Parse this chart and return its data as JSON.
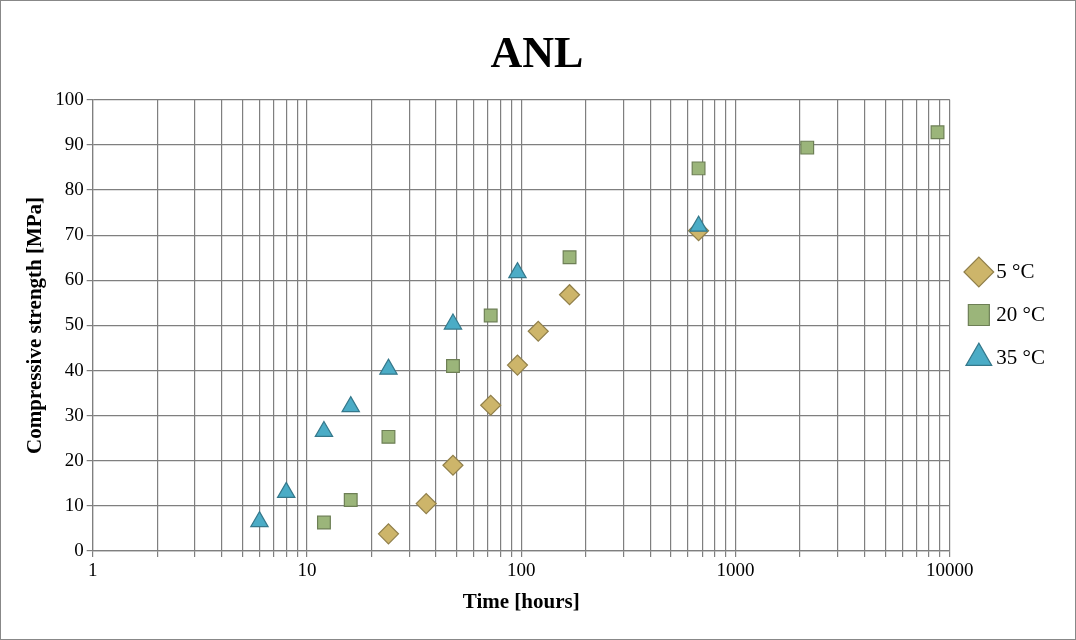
{
  "chart_data": {
    "type": "scatter",
    "title": "ANL",
    "xlabel": "Time [hours]",
    "ylabel": "Compressive strength [MPa]",
    "log": "x",
    "grid": true,
    "legend": "right",
    "xlim": [
      1,
      10000
    ],
    "xticks": [
      1,
      {
        "value": 2,
        "label": null
      },
      {
        "value": 3,
        "label": null
      },
      {
        "value": 4,
        "label": null
      },
      {
        "value": 5,
        "label": null
      },
      {
        "value": 6,
        "label": null
      },
      {
        "value": 7,
        "label": null
      },
      {
        "value": 8,
        "label": null
      },
      {
        "value": 9,
        "label": null
      },
      10,
      {
        "value": 20,
        "label": null
      },
      {
        "value": 30,
        "label": null
      },
      {
        "value": 40,
        "label": null
      },
      {
        "value": 50,
        "label": null
      },
      {
        "value": 60,
        "label": null
      },
      {
        "value": 70,
        "label": null
      },
      {
        "value": 80,
        "label": null
      },
      {
        "value": 90,
        "label": null
      },
      100,
      {
        "value": 200,
        "label": null
      },
      {
        "value": 300,
        "label": null
      },
      {
        "value": 400,
        "label": null
      },
      {
        "value": 500,
        "label": null
      },
      {
        "value": 600,
        "label": null
      },
      {
        "value": 700,
        "label": null
      },
      {
        "value": 800,
        "label": null
      },
      {
        "value": 900,
        "label": null
      },
      1000,
      {
        "value": 2000,
        "label": null
      },
      {
        "value": 3000,
        "label": null
      },
      {
        "value": 4000,
        "label": null
      },
      {
        "value": 5000,
        "label": null
      },
      {
        "value": 6000,
        "label": null
      },
      {
        "value": 7000,
        "label": null
      },
      {
        "value": 8000,
        "label": null
      },
      {
        "value": 9000,
        "label": null
      },
      10000
    ],
    "ylim": [
      0,
      100
    ],
    "yticks": [
      0,
      10,
      20,
      30,
      40,
      50,
      60,
      70,
      80,
      90,
      100
    ],
    "series": [
      {
        "name": "5 °C",
        "color": "#cdb56a",
        "marker": "diamond",
        "x": [
          24,
          36,
          48,
          72,
          96,
          120,
          168,
          672
        ],
        "values": [
          3.8,
          10.5,
          19,
          32.3,
          41.2,
          48.7,
          56.8,
          71
        ]
      },
      {
        "name": "20 °C",
        "color": "#9bb57a",
        "marker": "square",
        "x": [
          12,
          16,
          24,
          48,
          72,
          168,
          672,
          2160,
          8760
        ],
        "values": [
          6.3,
          11.3,
          25.3,
          41,
          52.2,
          65.1,
          84.8,
          89.4,
          92.8
        ]
      },
      {
        "name": "35 °C",
        "color": "#4bacc6",
        "marker": "triangle",
        "x": [
          6,
          8,
          12,
          16,
          24,
          48,
          96,
          672
        ],
        "values": [
          6.5,
          13,
          26.5,
          32,
          40.3,
          50.3,
          61.7,
          72
        ]
      }
    ]
  }
}
